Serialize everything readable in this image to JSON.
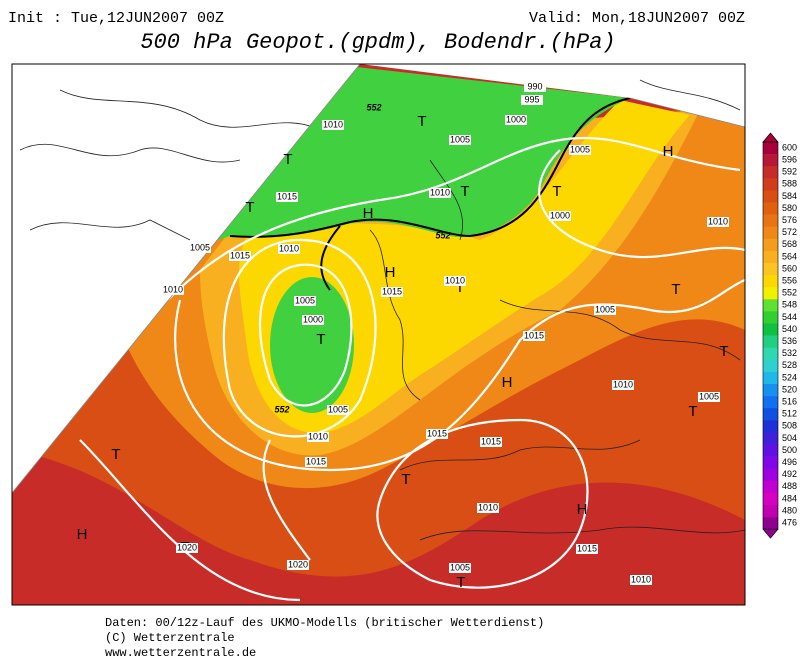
{
  "header": {
    "init": "Init : Tue,12JUN2007 00Z",
    "valid": "Valid: Mon,18JUN2007 00Z",
    "title": "500 hPa Geopot.(gpdm), Bodendr.(hPa)"
  },
  "colorbar": {
    "labels": [
      600,
      596,
      592,
      588,
      584,
      580,
      576,
      572,
      568,
      564,
      560,
      556,
      552,
      548,
      544,
      540,
      536,
      532,
      528,
      524,
      520,
      516,
      512,
      508,
      504,
      500,
      496,
      492,
      488,
      484,
      480,
      476
    ],
    "colors": [
      "#a8003a",
      "#b81838",
      "#c82c28",
      "#d03c1c",
      "#d84e14",
      "#e06010",
      "#e87414",
      "#f08818",
      "#f49c1c",
      "#f8b020",
      "#fcc420",
      "#fcd800",
      "#f0f000",
      "#60e030",
      "#30d030",
      "#10c040",
      "#20d080",
      "#30d8b0",
      "#30d0d0",
      "#20b8e8",
      "#1890f0",
      "#1070f0",
      "#1050e0",
      "#2030d8",
      "#4020d8",
      "#6010e0",
      "#8008e8",
      "#a000e0",
      "#c000d0",
      "#d800c0",
      "#c000b0",
      "#900090"
    ]
  },
  "map": {
    "markers": [
      "T",
      "T",
      "T",
      "H",
      "T",
      "T",
      "H",
      "H",
      "T",
      "T",
      "T",
      "T",
      "H",
      "T",
      "T",
      "T",
      "H",
      "T",
      "H",
      "T"
    ],
    "isobar_labels": [
      1010,
      990,
      995,
      1000,
      1005,
      1005,
      1010,
      1015,
      1000,
      1010,
      1005,
      1015,
      1010,
      1010,
      1010,
      1015,
      1005,
      1000,
      1005,
      1015,
      1010,
      1005,
      1005,
      1010,
      1015,
      1015,
      1015,
      1010,
      1015,
      1020,
      1020,
      1005,
      1010
    ],
    "height_labels": [
      552,
      552,
      552
    ]
  },
  "footer": {
    "lines": [
      "Daten: 00/12z-Lauf des UKMO-Modells (britischer Wetterdienst)",
      "(C) Wetterzentrale",
      "www.wetterzentrale.de"
    ]
  }
}
